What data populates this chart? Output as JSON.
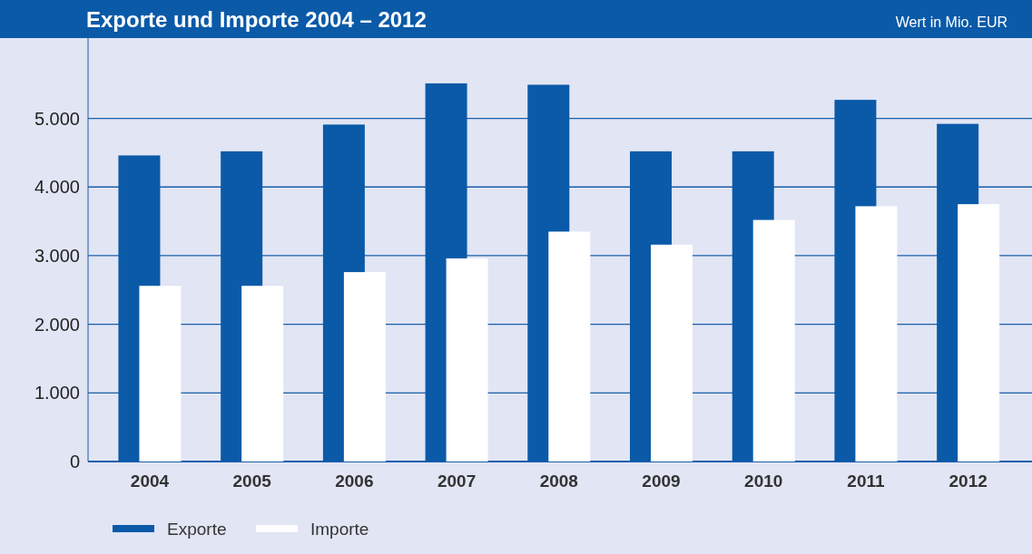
{
  "chart_data": {
    "type": "bar",
    "title": "Exporte und Importe 2004 – 2012",
    "subtitle": "Wert in Mio. EUR",
    "categories": [
      "2004",
      "2005",
      "2006",
      "2007",
      "2008",
      "2009",
      "2010",
      "2011",
      "2012"
    ],
    "series": [
      {
        "name": "Exporte",
        "color": "#0a5aa8",
        "values": [
          4460,
          4520,
          4910,
          5510,
          5490,
          4520,
          4520,
          5270,
          4920
        ]
      },
      {
        "name": "Importe",
        "color": "#ffffff",
        "values": [
          2560,
          2560,
          2760,
          2960,
          3350,
          3160,
          3520,
          3720,
          3750
        ]
      }
    ],
    "ylim": [
      0,
      6170
    ],
    "yticks": [
      {
        "value": 0,
        "label": "0"
      },
      {
        "value": 1000,
        "label": "1.000"
      },
      {
        "value": 2000,
        "label": "2.000"
      },
      {
        "value": 3000,
        "label": "3.000"
      },
      {
        "value": 4000,
        "label": "4.000"
      },
      {
        "value": 5000,
        "label": "5.000"
      }
    ],
    "grid": "y",
    "legend": "bottom left"
  }
}
